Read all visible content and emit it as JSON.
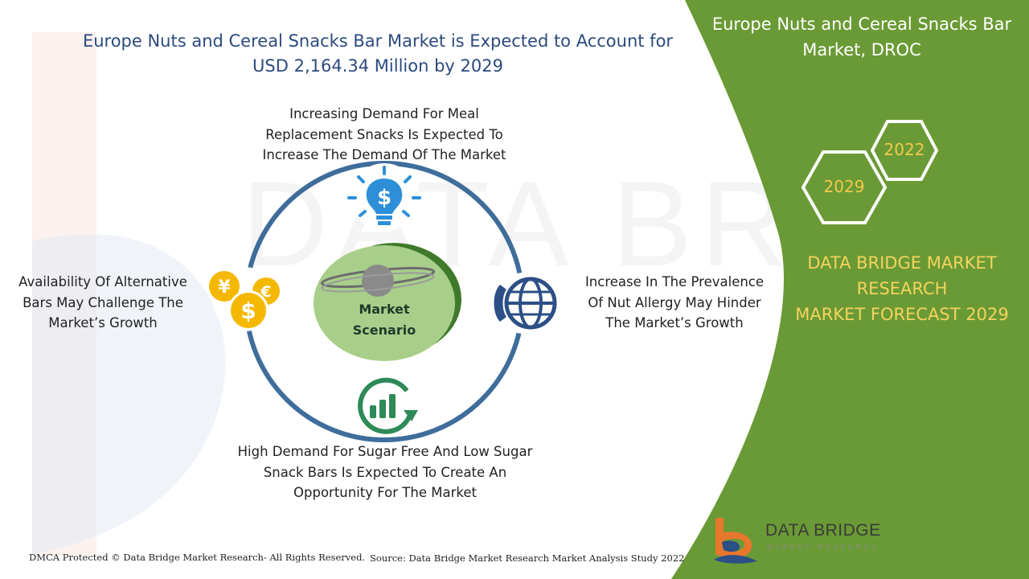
{
  "title": "Europe Nuts and Cereal Snacks Bar Market is Expected to Account for USD 2,164.34 Million by 2029",
  "side_panel": {
    "title": "Europe Nuts and Cereal Snacks Bar Market, DROC",
    "hex_years": [
      "2022",
      "2029"
    ],
    "forecast_lines": [
      "DATA BRIDGE MARKET",
      "RESEARCH",
      "MARKET FORECAST 2029"
    ],
    "panel_color": "#6a9a35",
    "accent_color": "#f4d35e"
  },
  "diagram": {
    "center_label": "Market Scenario",
    "ring_color": "#3f6d9b",
    "nodes": {
      "top": {
        "text": "Increasing Demand For Meal Replacement Snacks Is Expected To Increase The Demand Of The Market",
        "icon": "lightbulb-dollar-icon"
      },
      "right": {
        "text": "Increase In The Prevalence Of Nut Allergy May Hinder The Market’s Growth",
        "icon": "globe-phone-icon"
      },
      "bottom": {
        "text": "High Demand For Sugar Free And Low Sugar Snack Bars Is Expected To Create An Opportunity For The Market",
        "icon": "bar-chart-growth-icon"
      },
      "left": {
        "text": "Availability Of Alternative Bars May Challenge The Market’s Growth",
        "icon": "currency-coins-icon"
      }
    }
  },
  "footer": {
    "copyright": "DMCA Protected © Data Bridge Market Research- All Rights Reserved.",
    "source": "Source: Data Bridge Market Research Market Analysis Study 2022"
  },
  "logo": {
    "name": "DATA BRIDGE",
    "tagline": "MARKET RESEARCH"
  }
}
